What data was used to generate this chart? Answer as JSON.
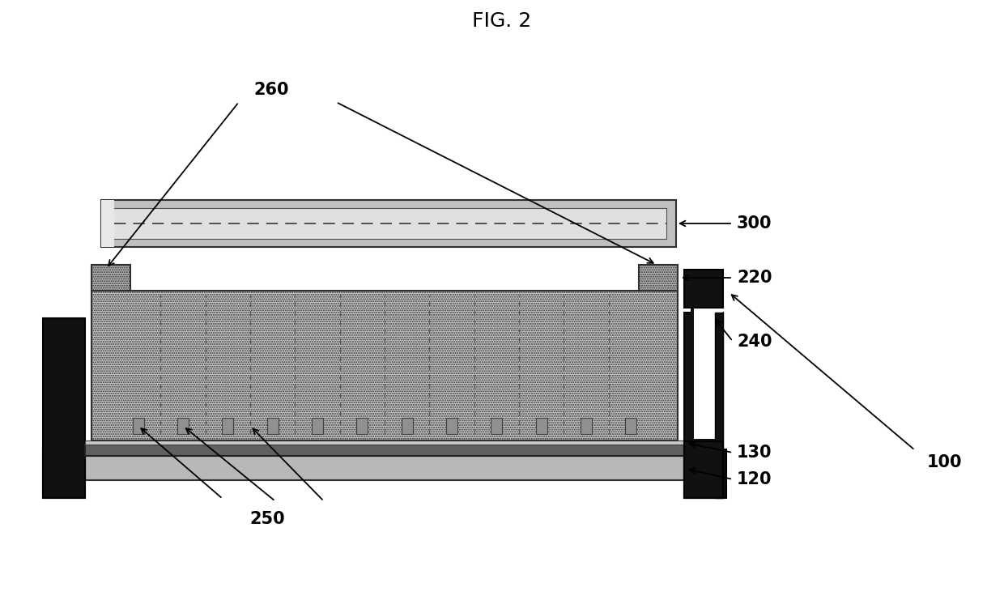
{
  "title": "FIG. 2",
  "title_fontsize": 18,
  "bg_color": "#ffffff",
  "label_100": "100",
  "label_300": "300",
  "label_260": "260",
  "label_220": "220",
  "label_240": "240",
  "label_130": "130",
  "label_120": "120",
  "label_250": "250",
  "n_dividers": 12
}
